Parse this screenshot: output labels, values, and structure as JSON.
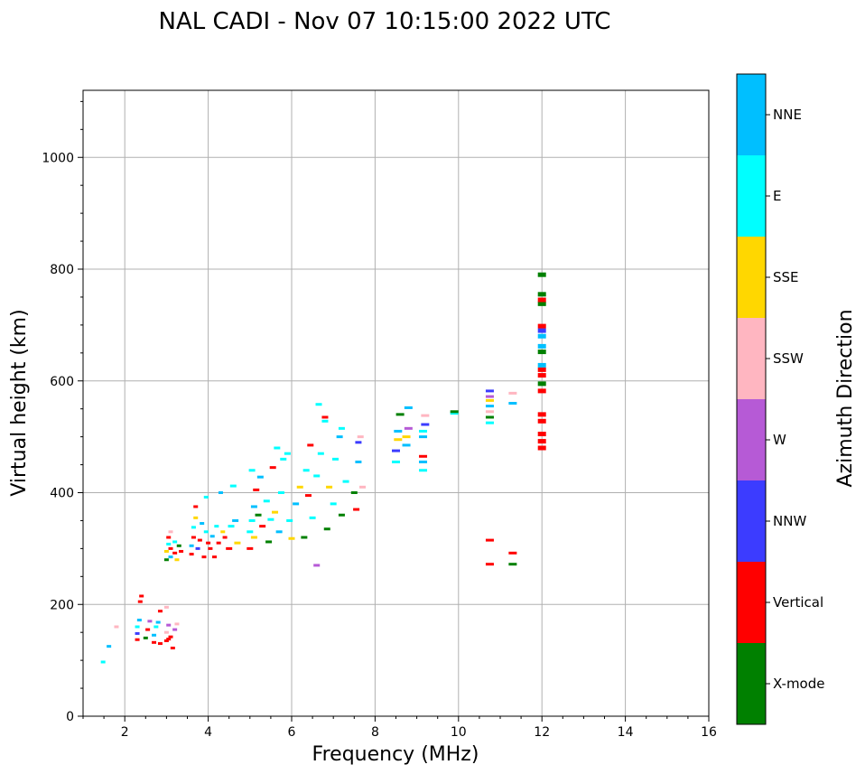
{
  "chart_data": {
    "type": "scatter",
    "title": "NAL CADI - Nov 07 10:15:00 2022 UTC",
    "xlabel": "Frequency (MHz)",
    "ylabel": "Virtual height (km)",
    "xlim": [
      1,
      16
    ],
    "ylim": [
      0,
      1120
    ],
    "xticks": [
      2,
      4,
      6,
      8,
      10,
      12,
      14,
      16
    ],
    "yticks": [
      0,
      200,
      400,
      600,
      800,
      1000
    ],
    "grid": true,
    "colorbar": {
      "label": "Azimuth Direction",
      "categories": [
        {
          "name": "X-mode",
          "color": "#008000"
        },
        {
          "name": "Vertical",
          "color": "#ff0000"
        },
        {
          "name": "NNW",
          "color": "#3c3cff"
        },
        {
          "name": "W",
          "color": "#b65ad6"
        },
        {
          "name": "SSW",
          "color": "#ffb6c1"
        },
        {
          "name": "SSE",
          "color": "#ffd700"
        },
        {
          "name": "E",
          "color": "#00ffff"
        },
        {
          "name": "NNE",
          "color": "#00bfff"
        }
      ]
    },
    "points": [
      {
        "f": 1.48,
        "h": 97,
        "c": "E"
      },
      {
        "f": 1.62,
        "h": 125,
        "c": "NNE"
      },
      {
        "f": 1.8,
        "h": 160,
        "c": "SSW"
      },
      {
        "f": 2.3,
        "h": 137,
        "c": "Vertical"
      },
      {
        "f": 2.3,
        "h": 148,
        "c": "NNW"
      },
      {
        "f": 2.3,
        "h": 160,
        "c": "E"
      },
      {
        "f": 2.35,
        "h": 172,
        "c": "NNE"
      },
      {
        "f": 2.37,
        "h": 205,
        "c": "Vertical"
      },
      {
        "f": 2.4,
        "h": 215,
        "c": "Vertical"
      },
      {
        "f": 2.5,
        "h": 140,
        "c": "X-mode"
      },
      {
        "f": 2.55,
        "h": 155,
        "c": "Vertical"
      },
      {
        "f": 2.6,
        "h": 170,
        "c": "W"
      },
      {
        "f": 2.7,
        "h": 132,
        "c": "Vertical"
      },
      {
        "f": 2.7,
        "h": 145,
        "c": "NNE"
      },
      {
        "f": 2.75,
        "h": 160,
        "c": "E"
      },
      {
        "f": 2.8,
        "h": 168,
        "c": "NNE"
      },
      {
        "f": 2.85,
        "h": 130,
        "c": "Vertical"
      },
      {
        "f": 2.85,
        "h": 188,
        "c": "Vertical"
      },
      {
        "f": 3.0,
        "h": 135,
        "c": "Vertical"
      },
      {
        "f": 3.0,
        "h": 150,
        "c": "SSW"
      },
      {
        "f": 3.05,
        "h": 138,
        "c": "Vertical"
      },
      {
        "f": 3.1,
        "h": 142,
        "c": "Vertical"
      },
      {
        "f": 3.05,
        "h": 163,
        "c": "W"
      },
      {
        "f": 3.15,
        "h": 122,
        "c": "Vertical"
      },
      {
        "f": 3.2,
        "h": 155,
        "c": "W"
      },
      {
        "f": 3.25,
        "h": 165,
        "c": "SSW"
      },
      {
        "f": 3.0,
        "h": 195,
        "c": "SSW"
      },
      {
        "f": 3.0,
        "h": 280,
        "c": "X-mode"
      },
      {
        "f": 3.0,
        "h": 295,
        "c": "SSE"
      },
      {
        "f": 3.05,
        "h": 308,
        "c": "E"
      },
      {
        "f": 3.05,
        "h": 320,
        "c": "Vertical"
      },
      {
        "f": 3.1,
        "h": 285,
        "c": "NNE"
      },
      {
        "f": 3.1,
        "h": 300,
        "c": "Vertical"
      },
      {
        "f": 3.1,
        "h": 330,
        "c": "SSW"
      },
      {
        "f": 3.2,
        "h": 292,
        "c": "Vertical"
      },
      {
        "f": 3.2,
        "h": 312,
        "c": "E"
      },
      {
        "f": 3.25,
        "h": 280,
        "c": "SSE"
      },
      {
        "f": 3.3,
        "h": 305,
        "c": "X-mode"
      },
      {
        "f": 3.35,
        "h": 295,
        "c": "Vertical"
      },
      {
        "f": 3.6,
        "h": 290,
        "c": "Vertical"
      },
      {
        "f": 3.6,
        "h": 305,
        "c": "NNE"
      },
      {
        "f": 3.65,
        "h": 320,
        "c": "Vertical"
      },
      {
        "f": 3.65,
        "h": 338,
        "c": "E"
      },
      {
        "f": 3.7,
        "h": 355,
        "c": "SSE"
      },
      {
        "f": 3.7,
        "h": 375,
        "c": "Vertical"
      },
      {
        "f": 3.75,
        "h": 300,
        "c": "NNW"
      },
      {
        "f": 3.8,
        "h": 315,
        "c": "Vertical"
      },
      {
        "f": 3.85,
        "h": 345,
        "c": "NNE"
      },
      {
        "f": 3.9,
        "h": 285,
        "c": "Vertical"
      },
      {
        "f": 3.95,
        "h": 330,
        "c": "E"
      },
      {
        "f": 3.95,
        "h": 392,
        "c": "E"
      },
      {
        "f": 4.0,
        "h": 310,
        "c": "Vertical"
      },
      {
        "f": 4.05,
        "h": 300,
        "c": "Vertical"
      },
      {
        "f": 4.1,
        "h": 322,
        "c": "NNE"
      },
      {
        "f": 4.15,
        "h": 285,
        "c": "Vertical"
      },
      {
        "f": 4.2,
        "h": 340,
        "c": "E"
      },
      {
        "f": 4.25,
        "h": 310,
        "c": "Vertical"
      },
      {
        "f": 4.3,
        "h": 400,
        "c": "NNE"
      },
      {
        "f": 4.35,
        "h": 330,
        "c": "SSE"
      },
      {
        "f": 4.4,
        "h": 320,
        "c": "Vertical"
      },
      {
        "f": 4.5,
        "h": 300,
        "c": "Vertical"
      },
      {
        "f": 4.55,
        "h": 340,
        "c": "E"
      },
      {
        "f": 4.6,
        "h": 412,
        "c": "E"
      },
      {
        "f": 4.65,
        "h": 350,
        "c": "NNE"
      },
      {
        "f": 4.7,
        "h": 310,
        "c": "SSE"
      },
      {
        "f": 5.0,
        "h": 300,
        "c": "Vertical"
      },
      {
        "f": 5.0,
        "h": 330,
        "c": "E"
      },
      {
        "f": 5.05,
        "h": 350,
        "c": "E"
      },
      {
        "f": 5.05,
        "h": 440,
        "c": "E"
      },
      {
        "f": 5.1,
        "h": 320,
        "c": "SSE"
      },
      {
        "f": 5.1,
        "h": 375,
        "c": "NNE"
      },
      {
        "f": 5.15,
        "h": 405,
        "c": "Vertical"
      },
      {
        "f": 5.2,
        "h": 360,
        "c": "X-mode"
      },
      {
        "f": 5.25,
        "h": 428,
        "c": "NNE"
      },
      {
        "f": 5.3,
        "h": 340,
        "c": "Vertical"
      },
      {
        "f": 5.4,
        "h": 385,
        "c": "E"
      },
      {
        "f": 5.45,
        "h": 312,
        "c": "X-mode"
      },
      {
        "f": 5.5,
        "h": 352,
        "c": "E"
      },
      {
        "f": 5.55,
        "h": 445,
        "c": "Vertical"
      },
      {
        "f": 5.6,
        "h": 365,
        "c": "SSE"
      },
      {
        "f": 5.65,
        "h": 480,
        "c": "E"
      },
      {
        "f": 5.7,
        "h": 330,
        "c": "NNE"
      },
      {
        "f": 5.75,
        "h": 400,
        "c": "E"
      },
      {
        "f": 5.8,
        "h": 460,
        "c": "E"
      },
      {
        "f": 5.9,
        "h": 470,
        "c": "E"
      },
      {
        "f": 5.95,
        "h": 350,
        "c": "E"
      },
      {
        "f": 6.0,
        "h": 318,
        "c": "SSE"
      },
      {
        "f": 6.1,
        "h": 380,
        "c": "NNE"
      },
      {
        "f": 6.2,
        "h": 410,
        "c": "SSE"
      },
      {
        "f": 6.3,
        "h": 320,
        "c": "X-mode"
      },
      {
        "f": 6.35,
        "h": 440,
        "c": "E"
      },
      {
        "f": 6.4,
        "h": 395,
        "c": "Vertical"
      },
      {
        "f": 6.45,
        "h": 485,
        "c": "Vertical"
      },
      {
        "f": 6.5,
        "h": 355,
        "c": "E"
      },
      {
        "f": 6.6,
        "h": 270,
        "c": "W"
      },
      {
        "f": 6.6,
        "h": 430,
        "c": "E"
      },
      {
        "f": 6.65,
        "h": 558,
        "c": "E"
      },
      {
        "f": 6.7,
        "h": 470,
        "c": "E"
      },
      {
        "f": 6.8,
        "h": 528,
        "c": "E"
      },
      {
        "f": 6.8,
        "h": 535,
        "c": "Vertical"
      },
      {
        "f": 6.85,
        "h": 335,
        "c": "X-mode"
      },
      {
        "f": 6.9,
        "h": 410,
        "c": "SSE"
      },
      {
        "f": 7.0,
        "h": 380,
        "c": "E"
      },
      {
        "f": 7.05,
        "h": 460,
        "c": "E"
      },
      {
        "f": 7.15,
        "h": 500,
        "c": "NNE"
      },
      {
        "f": 7.2,
        "h": 360,
        "c": "X-mode"
      },
      {
        "f": 7.2,
        "h": 515,
        "c": "E"
      },
      {
        "f": 7.3,
        "h": 420,
        "c": "E"
      },
      {
        "f": 7.5,
        "h": 400,
        "c": "X-mode"
      },
      {
        "f": 7.55,
        "h": 370,
        "c": "Vertical"
      },
      {
        "f": 7.6,
        "h": 455,
        "c": "NNE"
      },
      {
        "f": 7.6,
        "h": 490,
        "c": "NNW"
      },
      {
        "f": 7.65,
        "h": 500,
        "c": "SSW"
      },
      {
        "f": 7.7,
        "h": 410,
        "c": "SSW"
      },
      {
        "f": 8.5,
        "h": 455,
        "c": "E"
      },
      {
        "f": 8.5,
        "h": 475,
        "c": "NNW"
      },
      {
        "f": 8.55,
        "h": 495,
        "c": "SSE"
      },
      {
        "f": 8.55,
        "h": 510,
        "c": "NNE"
      },
      {
        "f": 8.6,
        "h": 540,
        "c": "X-mode"
      },
      {
        "f": 8.75,
        "h": 485,
        "c": "NNE"
      },
      {
        "f": 8.75,
        "h": 500,
        "c": "SSE"
      },
      {
        "f": 8.8,
        "h": 515,
        "c": "W"
      },
      {
        "f": 8.8,
        "h": 552,
        "c": "NNE"
      },
      {
        "f": 9.15,
        "h": 440,
        "c": "E"
      },
      {
        "f": 9.15,
        "h": 455,
        "c": "NNE"
      },
      {
        "f": 9.15,
        "h": 465,
        "c": "Vertical"
      },
      {
        "f": 9.15,
        "h": 500,
        "c": "NNE"
      },
      {
        "f": 9.15,
        "h": 510,
        "c": "E"
      },
      {
        "f": 9.2,
        "h": 522,
        "c": "NNW"
      },
      {
        "f": 9.2,
        "h": 538,
        "c": "SSW"
      },
      {
        "f": 9.9,
        "h": 542,
        "c": "E"
      },
      {
        "f": 9.9,
        "h": 545,
        "c": "X-mode"
      },
      {
        "f": 10.75,
        "h": 272,
        "c": "Vertical"
      },
      {
        "f": 10.75,
        "h": 315,
        "c": "Vertical"
      },
      {
        "f": 10.75,
        "h": 525,
        "c": "E"
      },
      {
        "f": 10.75,
        "h": 535,
        "c": "X-mode"
      },
      {
        "f": 10.75,
        "h": 545,
        "c": "SSW"
      },
      {
        "f": 10.75,
        "h": 555,
        "c": "NNE"
      },
      {
        "f": 10.75,
        "h": 565,
        "c": "SSE"
      },
      {
        "f": 10.75,
        "h": 572,
        "c": "W"
      },
      {
        "f": 10.75,
        "h": 582,
        "c": "NNW"
      },
      {
        "f": 11.3,
        "h": 272,
        "c": "X-mode"
      },
      {
        "f": 11.3,
        "h": 292,
        "c": "Vertical"
      },
      {
        "f": 11.3,
        "h": 560,
        "c": "NNE"
      },
      {
        "f": 11.3,
        "h": 578,
        "c": "SSW"
      },
      {
        "f": 12.0,
        "h": 480,
        "c": "Vertical"
      },
      {
        "f": 12.0,
        "h": 492,
        "c": "Vertical"
      },
      {
        "f": 12.0,
        "h": 505,
        "c": "Vertical"
      },
      {
        "f": 12.0,
        "h": 528,
        "c": "Vertical"
      },
      {
        "f": 12.0,
        "h": 540,
        "c": "Vertical"
      },
      {
        "f": 12.0,
        "h": 582,
        "c": "Vertical"
      },
      {
        "f": 12.0,
        "h": 595,
        "c": "X-mode"
      },
      {
        "f": 12.0,
        "h": 610,
        "c": "Vertical"
      },
      {
        "f": 12.0,
        "h": 620,
        "c": "Vertical"
      },
      {
        "f": 12.0,
        "h": 628,
        "c": "NNE"
      },
      {
        "f": 12.0,
        "h": 652,
        "c": "X-mode"
      },
      {
        "f": 12.0,
        "h": 662,
        "c": "NNE"
      },
      {
        "f": 12.0,
        "h": 680,
        "c": "NNE"
      },
      {
        "f": 12.0,
        "h": 690,
        "c": "NNW"
      },
      {
        "f": 12.0,
        "h": 698,
        "c": "Vertical"
      },
      {
        "f": 12.0,
        "h": 738,
        "c": "X-mode"
      },
      {
        "f": 12.0,
        "h": 745,
        "c": "Vertical"
      },
      {
        "f": 12.0,
        "h": 755,
        "c": "X-mode"
      },
      {
        "f": 12.0,
        "h": 790,
        "c": "X-mode"
      }
    ]
  }
}
